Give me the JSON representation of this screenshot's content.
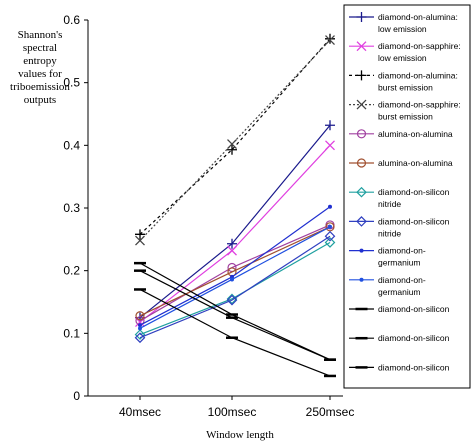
{
  "chart_data": {
    "type": "line",
    "ylabel": [
      "Shannon's",
      "spectral",
      "entropy",
      "values for",
      "triboemission",
      "outputs"
    ],
    "xlabel": "Window length",
    "categories": [
      "40msec",
      "100msec",
      "250msec"
    ],
    "ylim": [
      0,
      0.6
    ],
    "yticks": [
      "0",
      "0.1",
      "0.2",
      "0.3",
      "0.4",
      "0.5",
      "0.6"
    ],
    "grid": false,
    "legend_position": "right",
    "series": [
      {
        "name": [
          "diamond-on-alumina:",
          "low emission"
        ],
        "values": [
          0.125,
          0.243,
          0.432
        ],
        "color": "#1a1a8c",
        "marker": "plus",
        "dash": "none"
      },
      {
        "name": [
          "diamond-on-sapphire:",
          "low emission"
        ],
        "values": [
          0.118,
          0.232,
          0.4
        ],
        "color": "#e040e0",
        "marker": "x",
        "dash": "none"
      },
      {
        "name": [
          "diamond-on-alumina:",
          "burst emission"
        ],
        "values": [
          0.258,
          0.393,
          0.57
        ],
        "color": "#000000",
        "marker": "plus",
        "dash": "3,3"
      },
      {
        "name": [
          "diamond-on-sapphire:",
          "burst emission"
        ],
        "values": [
          0.248,
          0.402,
          0.568
        ],
        "color": "#444444",
        "marker": "x",
        "dash": "2,2"
      },
      {
        "name": [
          "alumina-on-alumina"
        ],
        "values": [
          0.12,
          0.205,
          0.273
        ],
        "color": "#a040a0",
        "marker": "circle",
        "dash": "none"
      },
      {
        "name": [
          "alumina-on-alumina"
        ],
        "values": [
          0.128,
          0.198,
          0.27
        ],
        "color": "#a05030",
        "marker": "circle",
        "dash": "none"
      },
      {
        "name": [
          "diamond-on-silicon",
          "nitride"
        ],
        "values": [
          0.098,
          0.155,
          0.245
        ],
        "color": "#20a0a0",
        "marker": "diamond",
        "dash": "none"
      },
      {
        "name": [
          "diamond-on-silicon",
          "nitride"
        ],
        "values": [
          0.093,
          0.153,
          0.255
        ],
        "color": "#3040c0",
        "marker": "diamond",
        "dash": "none"
      },
      {
        "name": [
          "diamond-on-",
          "germanium"
        ],
        "values": [
          0.113,
          0.19,
          0.302
        ],
        "color": "#2030d0",
        "marker": "dot",
        "dash": "none"
      },
      {
        "name": [
          "diamond-on-",
          "germanium"
        ],
        "values": [
          0.108,
          0.186,
          0.27
        ],
        "color": "#2050e0",
        "marker": "dot",
        "dash": "none"
      },
      {
        "name": [
          "diamond-on-silicon"
        ],
        "values": [
          0.212,
          0.13,
          0.058
        ],
        "color": "#000000",
        "marker": "dash",
        "dash": "none"
      },
      {
        "name": [
          "diamond-on-silicon"
        ],
        "values": [
          0.2,
          0.125,
          0.058
        ],
        "color": "#000000",
        "marker": "dash",
        "dash": "none"
      },
      {
        "name": [
          "diamond-on-silicon"
        ],
        "values": [
          0.17,
          0.093,
          0.032
        ],
        "color": "#000000",
        "marker": "dash",
        "dash": "none"
      }
    ]
  }
}
